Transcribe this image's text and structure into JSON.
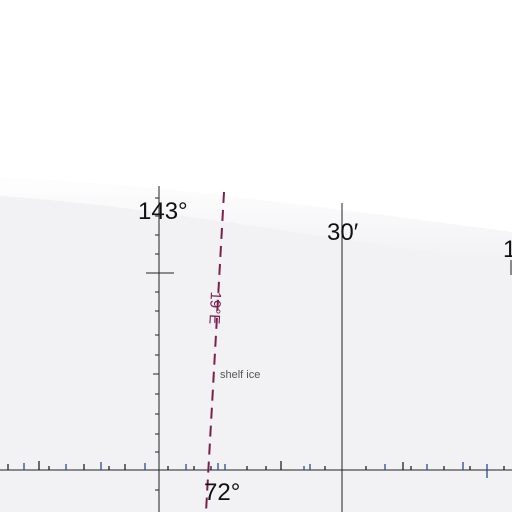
{
  "map": {
    "grid_labels": {
      "lon_left": "143°",
      "lon_mid": "30′",
      "lon_right_partial": "1",
      "lat_bottom": "72°"
    },
    "isogonic_line": {
      "label": "19°E",
      "color": "#7a1f4f"
    },
    "features": {
      "area_label": "shelf ice"
    },
    "colors": {
      "sky_background": "#ffffff",
      "ice_fill": "#f2f2f5",
      "grid_line": "#222222",
      "tick_blue": "#2a4a8a"
    }
  }
}
